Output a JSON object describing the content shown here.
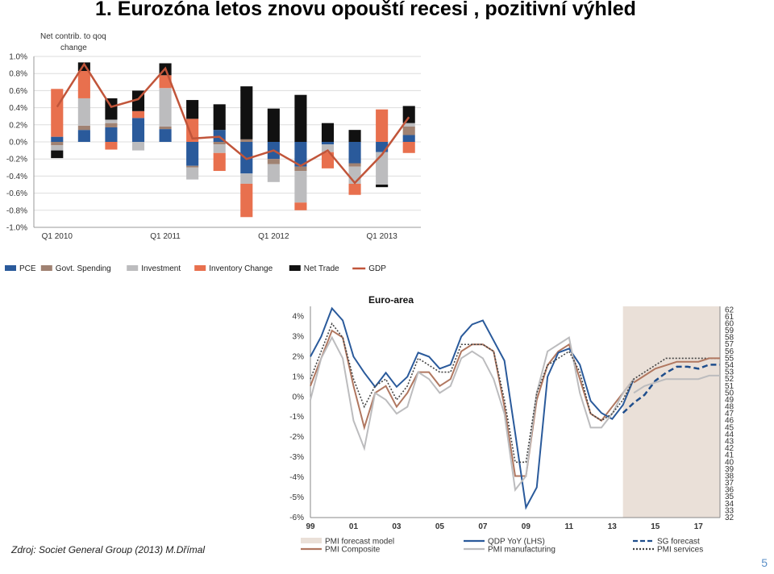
{
  "title": "1. Eurozóna letos znovu opouští recesi , pozitivní výhled",
  "source": "Zdroj: Societ General Group (2013) M.Dřímal",
  "page_number": "5",
  "chart_data": [
    {
      "type": "bar",
      "ylabel": "Net contrib. to qoq change",
      "ylim": [
        -1.0,
        1.0
      ],
      "yticks": [
        "1.0%",
        "0.8%",
        "0.6%",
        "0.4%",
        "0.2%",
        "0.0%",
        "-0.2%",
        "-0.4%",
        "-0.6%",
        "-0.8%",
        "-1.0%"
      ],
      "x_tick_labels": [
        {
          "label": "Q1 2010",
          "index": 0
        },
        {
          "label": "Q1 2011",
          "index": 4
        },
        {
          "label": "Q1 2012",
          "index": 8
        },
        {
          "label": "Q1 2013",
          "index": 12
        }
      ],
      "stacked": true,
      "categories": [
        "Q1 2010",
        "Q2 2010",
        "Q3 2010",
        "Q4 2010",
        "Q1 2011",
        "Q2 2011",
        "Q3 2011",
        "Q4 2011",
        "Q1 2012",
        "Q2 2012",
        "Q3 2012",
        "Q4 2012",
        "Q1 2013",
        "Q2 2013"
      ],
      "legend_position": "bottom",
      "series": [
        {
          "name": "PCE",
          "color": "#2a5a9b",
          "values": [
            0.06,
            0.14,
            0.17,
            0.28,
            0.15,
            -0.28,
            0.14,
            -0.37,
            -0.2,
            -0.29,
            -0.03,
            -0.25,
            -0.12,
            0.08
          ]
        },
        {
          "name": "Govt. Spending",
          "color": "#a08272",
          "values": [
            -0.04,
            0.05,
            0.05,
            0.0,
            0.03,
            -0.02,
            -0.03,
            0.03,
            -0.06,
            -0.05,
            0.0,
            -0.04,
            0.0,
            0.1
          ]
        },
        {
          "name": "Investment",
          "color": "#bcbcbe",
          "values": [
            -0.06,
            0.32,
            0.04,
            -0.1,
            0.45,
            -0.14,
            -0.1,
            -0.12,
            -0.21,
            -0.37,
            -0.09,
            -0.2,
            -0.38,
            0.04
          ]
        },
        {
          "name": "Inventory Change",
          "color": "#e8704e",
          "values": [
            0.56,
            0.32,
            -0.09,
            0.08,
            0.15,
            0.27,
            -0.21,
            -0.39,
            0.0,
            -0.09,
            -0.19,
            -0.13,
            0.38,
            -0.13
          ]
        },
        {
          "name": "Net Trade",
          "color": "#111111",
          "values": [
            -0.09,
            0.1,
            0.25,
            0.24,
            0.14,
            0.22,
            0.3,
            0.62,
            0.39,
            0.55,
            0.22,
            0.14,
            -0.03,
            0.2
          ]
        }
      ],
      "line_series": {
        "name": "GDP",
        "color": "#c1553a",
        "values": [
          0.41,
          0.91,
          0.41,
          0.5,
          0.86,
          0.04,
          0.06,
          -0.2,
          -0.1,
          -0.28,
          -0.1,
          -0.48,
          -0.15,
          0.29
        ]
      }
    },
    {
      "type": "line",
      "title": "Euro-area",
      "x_tick_labels": [
        "99",
        "01",
        "03",
        "05",
        "07",
        "09",
        "11",
        "13",
        "15",
        "17"
      ],
      "x_range": [
        1999,
        2018
      ],
      "y_left_ticks": [
        "4%",
        "3%",
        "2%",
        "1%",
        "0%",
        "-1%",
        "-2%",
        "-3%",
        "-4%",
        "-5%",
        "-6%"
      ],
      "y_left_range": [
        -6,
        4.5
      ],
      "y_right_ticks": [
        "62",
        "61",
        "60",
        "59",
        "58",
        "57",
        "56",
        "55",
        "54",
        "53",
        "52",
        "51",
        "50",
        "49",
        "48",
        "47",
        "46",
        "45",
        "44",
        "43",
        "42",
        "41",
        "40",
        "39",
        "38",
        "37",
        "36",
        "35",
        "34",
        "33",
        "32"
      ],
      "y_right_range": [
        32,
        62.5
      ],
      "shaded_region": [
        2013.5,
        2018
      ],
      "legend_position": "bottom",
      "series": [
        {
          "name": "PMI forecast model",
          "color": "#eae0d8",
          "style": "band",
          "x": [
            2013.5,
            2018
          ],
          "y": [
            -6,
            4.5
          ]
        },
        {
          "name": "PMI Composite",
          "color": "#b07760",
          "style": "solid",
          "axis": "right",
          "x": [
            1999,
            1999.5,
            2000,
            2000.5,
            2001,
            2001.5,
            2002,
            2002.5,
            2003,
            2003.5,
            2004,
            2004.5,
            2005,
            2005.5,
            2006,
            2006.5,
            2007,
            2007.5,
            2008,
            2008.5,
            2009,
            2009.5,
            2010,
            2010.5,
            2011,
            2011.5,
            2012,
            2012.5,
            2013,
            2013.5,
            2014
          ],
          "y": [
            51,
            55,
            59,
            58,
            51,
            45,
            50,
            51,
            48,
            50,
            53,
            53,
            51,
            52,
            56,
            57,
            57,
            56,
            48,
            38,
            38,
            49,
            54,
            56,
            57,
            52,
            47,
            46,
            48,
            50,
            52
          ]
        },
        {
          "name": "QDP YoY (LHS)",
          "color": "#2a5a9b",
          "style": "solid",
          "axis": "left",
          "x": [
            1999,
            1999.5,
            2000,
            2000.5,
            2001,
            2001.5,
            2002,
            2002.5,
            2003,
            2003.5,
            2004,
            2004.5,
            2005,
            2005.5,
            2006,
            2006.5,
            2007,
            2007.5,
            2008,
            2008.5,
            2009,
            2009.5,
            2010,
            2010.5,
            2011,
            2011.5,
            2012,
            2012.5,
            2013,
            2013.5,
            2014
          ],
          "y": [
            2,
            3,
            4.4,
            3.8,
            2,
            1.2,
            0.5,
            1.2,
            0.5,
            1,
            2.2,
            2,
            1.4,
            1.6,
            3,
            3.6,
            3.8,
            2.8,
            1.8,
            -1.8,
            -5.5,
            -4.5,
            1,
            2.2,
            2.4,
            1.6,
            -0.2,
            -0.8,
            -1.1,
            -0.4,
            0.9
          ]
        },
        {
          "name": "PMI manufacturing",
          "color": "#bcbcbe",
          "style": "solid",
          "axis": "right",
          "x": [
            1999,
            1999.5,
            2000,
            2000.5,
            2001,
            2001.5,
            2002,
            2002.5,
            2003,
            2003.5,
            2004,
            2004.5,
            2005,
            2005.5,
            2006,
            2006.5,
            2007,
            2007.5,
            2008,
            2008.5,
            2009,
            2009.5,
            2010,
            2010.5,
            2011,
            2011.5,
            2012,
            2012.5,
            2013,
            2013.5,
            2014
          ],
          "y": [
            49,
            55,
            58,
            55,
            46,
            42,
            50,
            49,
            47,
            48,
            53,
            52,
            50,
            51,
            55,
            56,
            55,
            52,
            47,
            36,
            38,
            50,
            56,
            57,
            58,
            50,
            45,
            45,
            47,
            50,
            52
          ]
        },
        {
          "name": "SG forecast",
          "color": "#1f4e8c",
          "style": "dashed",
          "axis": "left",
          "x": [
            2013.5,
            2014,
            2014.5,
            2015,
            2015.5,
            2016,
            2016.5,
            2017,
            2017.5,
            2018
          ],
          "y": [
            -0.8,
            -0.3,
            0.1,
            0.8,
            1.2,
            1.5,
            1.5,
            1.4,
            1.6,
            1.6
          ]
        },
        {
          "name": "PMI services",
          "color": "#444444",
          "style": "dotted",
          "axis": "right",
          "x": [
            1999,
            1999.5,
            2000,
            2000.5,
            2001,
            2001.5,
            2002,
            2002.5,
            2003,
            2003.5,
            2004,
            2004.5,
            2005,
            2005.5,
            2006,
            2006.5,
            2007,
            2007.5,
            2008,
            2008.5,
            2009,
            2009.5,
            2010,
            2010.5,
            2011,
            2011.5,
            2012,
            2012.5,
            2013,
            2013.5,
            2014,
            2014.5,
            2015,
            2015.5,
            2016,
            2016.5,
            2017,
            2017.5,
            2018
          ],
          "y": [
            52,
            56,
            60,
            58,
            52,
            48,
            51,
            52,
            49,
            51,
            55,
            54,
            53,
            53,
            57,
            57,
            57,
            56,
            49,
            40,
            40,
            50,
            54,
            55,
            56,
            53,
            47,
            46,
            47,
            49,
            52,
            53,
            54,
            55,
            55,
            55,
            55,
            55,
            55
          ]
        },
        {
          "name": "PMI composite forecast",
          "color": "#b07760",
          "style": "solid",
          "axis": "right",
          "x": [
            2014,
            2014.5,
            2015,
            2015.5,
            2016,
            2016.5,
            2017,
            2017.5,
            2018
          ],
          "y": [
            51.5,
            52.5,
            53.5,
            54,
            54.5,
            54.5,
            54.5,
            55,
            55
          ]
        },
        {
          "name": "PMI manufacturing forecast",
          "color": "#bcbcbe",
          "style": "solid",
          "axis": "right",
          "x": [
            2014,
            2014.5,
            2015,
            2015.5,
            2016,
            2016.5,
            2017,
            2017.5,
            2018
          ],
          "y": [
            50,
            51,
            51.5,
            52,
            52,
            52,
            52,
            52.5,
            52.5
          ]
        }
      ],
      "legend_entries": [
        "PMI forecast model",
        "QDP YoY (LHS)",
        "SG forecast",
        "PMI Composite",
        "PMI manufacturing",
        "PMI services"
      ]
    }
  ]
}
